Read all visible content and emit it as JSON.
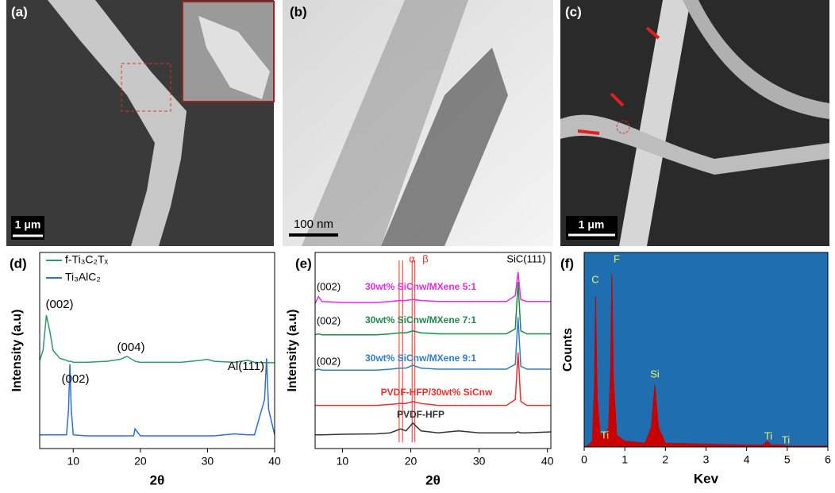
{
  "panels": {
    "a": {
      "label": "(a)",
      "scale_bar": "1 μm"
    },
    "b": {
      "label": "(b)",
      "scale_bar": "100 nm"
    },
    "c": {
      "label": "(c)",
      "scale_bar": "1 μm"
    }
  },
  "chart_data": [
    {
      "type": "line",
      "label": "(d)",
      "xlabel": "2θ",
      "ylabel": "Intensity (a.u)",
      "xlim": [
        5,
        40
      ],
      "ylim": [
        0,
        100
      ],
      "xticks": [
        10,
        20,
        30,
        40
      ],
      "legend": "upper left",
      "x": [
        5,
        5.5,
        6,
        6.5,
        7,
        8,
        9,
        9.3,
        9.5,
        9.7,
        10,
        12,
        15,
        17,
        18,
        19,
        19.2,
        20,
        23,
        26,
        29,
        30,
        31,
        34,
        36,
        37,
        38.5,
        38.8,
        39.1,
        40
      ],
      "series": [
        {
          "name": "f-Ti₃C₂Tₓ",
          "color": "#2e9a6a",
          "values": [
            45,
            50,
            68,
            60,
            50,
            46,
            45,
            44.5,
            44.5,
            44.5,
            44,
            44,
            44.5,
            45.5,
            47,
            45,
            44.5,
            44,
            44,
            44,
            45,
            45.5,
            44.5,
            44,
            45,
            44,
            43.8,
            43.8,
            43.8,
            43.8
          ]
        },
        {
          "name": "Ti₃AlC₂",
          "color": "#2f6fd0",
          "values": [
            7,
            7,
            7,
            7,
            7,
            7,
            7,
            20,
            43,
            20,
            7,
            6.5,
            6.5,
            6.5,
            6.5,
            6.5,
            10,
            6.5,
            6.5,
            6.5,
            6.5,
            6.5,
            6.5,
            7.5,
            7,
            7,
            25,
            46,
            20,
            7
          ]
        }
      ],
      "annotations": [
        "(002)",
        "(004)",
        "(002)",
        "Al(111)"
      ]
    },
    {
      "type": "line",
      "label": "(e)",
      "xlabel": "2θ",
      "ylabel": "Intensity (a.u)",
      "xlim": [
        6,
        40.5
      ],
      "ylim": [
        0,
        100
      ],
      "xticks": [
        10,
        20,
        30,
        40
      ],
      "x": [
        6,
        6.5,
        7,
        10,
        15,
        17,
        18.5,
        19.3,
        20.3,
        21.5,
        24,
        27,
        30,
        34,
        35.3,
        35.7,
        36.1,
        37,
        40.5
      ],
      "series": [
        {
          "name": "PVDF-HFP",
          "color": "#333333",
          "values": [
            7,
            7,
            7,
            7.3,
            7.5,
            8,
            10,
            9,
            13,
            9,
            8,
            9,
            8,
            8,
            8,
            8.5,
            8,
            8,
            8.5
          ]
        },
        {
          "name": "PVDF-HFP/30wt% SiCnw",
          "color": "#e8302a",
          "values": [
            22,
            22,
            22,
            22,
            22,
            22.5,
            23,
            23,
            24,
            23,
            22,
            22,
            22,
            22,
            25,
            49,
            24,
            22,
            22
          ]
        },
        {
          "name": "30wt% SiCnw/MXene 9:1",
          "color": "#2f7fc0",
          "values": [
            40,
            40.5,
            40,
            40,
            40,
            40.5,
            41,
            41,
            42.5,
            41,
            40.5,
            40.5,
            40.5,
            40.5,
            43,
            67,
            42,
            40.5,
            40.5
          ]
        },
        {
          "name": "30wt% SiCnw/MXene 7:1",
          "color": "#1f8a4a",
          "values": [
            58,
            58.5,
            58,
            58,
            58,
            58.5,
            59,
            59,
            60,
            59,
            58.5,
            58.5,
            58.5,
            58.5,
            61,
            85,
            60,
            58.5,
            58.5
          ]
        },
        {
          "name": "30wt% SiCnw/MXene 5:1",
          "color": "#e22ee0",
          "values": [
            74,
            77.5,
            75,
            74.5,
            74.5,
            75,
            75.5,
            75.5,
            76,
            75.5,
            75,
            75,
            75,
            75,
            78,
            90,
            76,
            75,
            75
          ]
        }
      ],
      "vlines": [
        18.3,
        18.8,
        20.2,
        20.6
      ],
      "vline_color": "#e8302a",
      "annotations": [
        "(002)",
        "(002)",
        "(002)",
        "SiC(111)",
        "α",
        "β"
      ]
    },
    {
      "type": "area",
      "label": "(f)",
      "xlabel": "Kev",
      "ylabel": "Counts",
      "xlim": [
        0,
        6
      ],
      "ylim": [
        0,
        100
      ],
      "xticks": [
        0,
        1,
        2,
        3,
        4,
        5,
        6
      ],
      "background": "#1f6fb0",
      "color": "#c80000",
      "x": [
        0,
        0.1,
        0.2,
        0.25,
        0.28,
        0.32,
        0.4,
        0.45,
        0.5,
        0.6,
        0.65,
        0.68,
        0.72,
        0.8,
        1,
        1.5,
        1.65,
        1.74,
        1.83,
        2,
        3,
        4,
        4.4,
        4.51,
        4.6,
        4.9,
        5,
        6
      ],
      "values": [
        0,
        1,
        3,
        30,
        77.5,
        25,
        5,
        7,
        5,
        10,
        40,
        89,
        35,
        6,
        3,
        2,
        10,
        32,
        10,
        2,
        1.5,
        1,
        1,
        3,
        1,
        1,
        0.5,
        0.5
      ],
      "annotations": [
        "C",
        "F",
        "Ti",
        "Si",
        "Ti",
        "Ti"
      ]
    }
  ]
}
